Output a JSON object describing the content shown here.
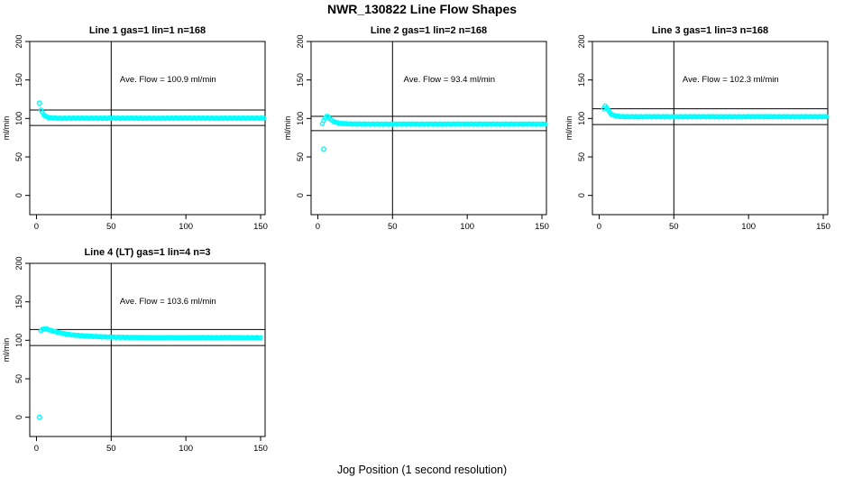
{
  "page": {
    "title": "NWR_130822  Line Flow Shapes",
    "xlabel": "Jog Position (1 second resolution)"
  },
  "colors": {
    "points": "#00ffff",
    "axis": "#000000",
    "background": "#ffffff"
  },
  "chart_data": [
    {
      "type": "scatter",
      "title": "Line 1 gas=1 lin=1 n=168",
      "annotation": "Ave. Flow =  100.9  ml/min",
      "ave_flow": 100.9,
      "ylabel": "ml/min",
      "xticks": [
        0,
        50,
        100,
        150
      ],
      "yticks": [
        0,
        50,
        100,
        150,
        200
      ],
      "xlim": [
        -4.5,
        153
      ],
      "ylim": [
        -25,
        200
      ],
      "vline": 50,
      "hlines": [
        110.9,
        90.8
      ],
      "grid": false,
      "legend": null,
      "points": [
        [
          3,
          111
        ],
        [
          4,
          107.5
        ],
        [
          5,
          105
        ],
        [
          6,
          103
        ],
        [
          7,
          102
        ],
        [
          8,
          101.3
        ],
        [
          10,
          100.7
        ],
        [
          13,
          100.4
        ],
        [
          16,
          100.2
        ],
        [
          20,
          100.3
        ],
        [
          30,
          100.4
        ],
        [
          40,
          100.3
        ],
        [
          60,
          100.4
        ],
        [
          80,
          100.3
        ],
        [
          100,
          100.5
        ],
        [
          120,
          100.3
        ],
        [
          140,
          100.4
        ],
        [
          152,
          100.4
        ]
      ],
      "outliers": [
        [
          2,
          120
        ]
      ]
    },
    {
      "type": "scatter",
      "title": "Line 2 gas=1 lin=2 n=168",
      "annotation": "Ave. Flow =  93.4  ml/min",
      "ave_flow": 93.4,
      "ylabel": "ml/min",
      "xticks": [
        0,
        50,
        100,
        150
      ],
      "yticks": [
        0,
        50,
        100,
        150,
        200
      ],
      "xlim": [
        -4.5,
        153
      ],
      "ylim": [
        -25,
        200
      ],
      "vline": 50,
      "hlines": [
        102.7,
        84.1
      ],
      "grid": false,
      "legend": null,
      "points": [
        [
          3,
          93
        ],
        [
          4,
          97
        ],
        [
          5,
          101
        ],
        [
          6,
          103
        ],
        [
          7,
          102
        ],
        [
          8,
          100
        ],
        [
          9,
          98
        ],
        [
          10,
          96.5
        ],
        [
          12,
          95
        ],
        [
          14,
          94
        ],
        [
          17,
          93.3
        ],
        [
          20,
          93
        ],
        [
          25,
          92.8
        ],
        [
          30,
          92.7
        ],
        [
          40,
          92.6
        ],
        [
          60,
          92.7
        ],
        [
          80,
          92.6
        ],
        [
          100,
          92.7
        ],
        [
          120,
          92.6
        ],
        [
          140,
          92.7
        ],
        [
          152,
          92.6
        ]
      ],
      "outliers": [
        [
          4,
          60
        ]
      ]
    },
    {
      "type": "scatter",
      "title": "Line 3 gas=1 lin=3 n=168",
      "annotation": "Ave. Flow =  102.3  ml/min",
      "ave_flow": 102.3,
      "ylabel": "ml/min",
      "xticks": [
        0,
        50,
        100,
        150
      ],
      "yticks": [
        0,
        50,
        100,
        150,
        200
      ],
      "xlim": [
        -4.5,
        153
      ],
      "ylim": [
        -25,
        200
      ],
      "vline": 50,
      "hlines": [
        112.5,
        92.1
      ],
      "grid": false,
      "legend": null,
      "points": [
        [
          3,
          113
        ],
        [
          4,
          116
        ],
        [
          5,
          114.5
        ],
        [
          6,
          111
        ],
        [
          7,
          108
        ],
        [
          8,
          106
        ],
        [
          9,
          104.5
        ],
        [
          11,
          103.3
        ],
        [
          14,
          102.6
        ],
        [
          18,
          102.3
        ],
        [
          25,
          102.2
        ],
        [
          35,
          102.3
        ],
        [
          50,
          102.2
        ],
        [
          70,
          102.3
        ],
        [
          90,
          102.2
        ],
        [
          110,
          102.4
        ],
        [
          130,
          102.2
        ],
        [
          152,
          102.3
        ]
      ],
      "outliers": []
    },
    {
      "type": "scatter",
      "title": "Line 4 (LT) gas=1 lin=4 n=3",
      "annotation": "Ave. Flow =  103.6  ml/min",
      "ave_flow": 103.6,
      "ylabel": "ml/min",
      "xticks": [
        0,
        50,
        100,
        150
      ],
      "yticks": [
        0,
        50,
        100,
        150,
        200
      ],
      "xlim": [
        -4.5,
        153
      ],
      "ylim": [
        -25,
        200
      ],
      "vline": 50,
      "hlines": [
        114.0,
        93.2
      ],
      "grid": false,
      "legend": null,
      "points": [
        [
          3,
          112
        ],
        [
          4,
          114
        ],
        [
          5,
          115
        ],
        [
          6,
          115
        ],
        [
          8,
          114
        ],
        [
          10,
          112.5
        ],
        [
          13,
          111
        ],
        [
          16,
          109.5
        ],
        [
          20,
          108
        ],
        [
          25,
          106.8
        ],
        [
          30,
          106
        ],
        [
          35,
          105.4
        ],
        [
          40,
          104.9
        ],
        [
          45,
          104.5
        ],
        [
          50,
          104.2
        ],
        [
          60,
          103.8
        ],
        [
          70,
          103.6
        ],
        [
          80,
          103.5
        ],
        [
          90,
          103.6
        ],
        [
          100,
          103.5
        ],
        [
          110,
          103.6
        ],
        [
          120,
          103.5
        ],
        [
          130,
          103.6
        ],
        [
          140,
          103.5
        ],
        [
          150,
          103.4
        ]
      ],
      "outliers": [
        [
          2,
          0
        ]
      ]
    }
  ]
}
